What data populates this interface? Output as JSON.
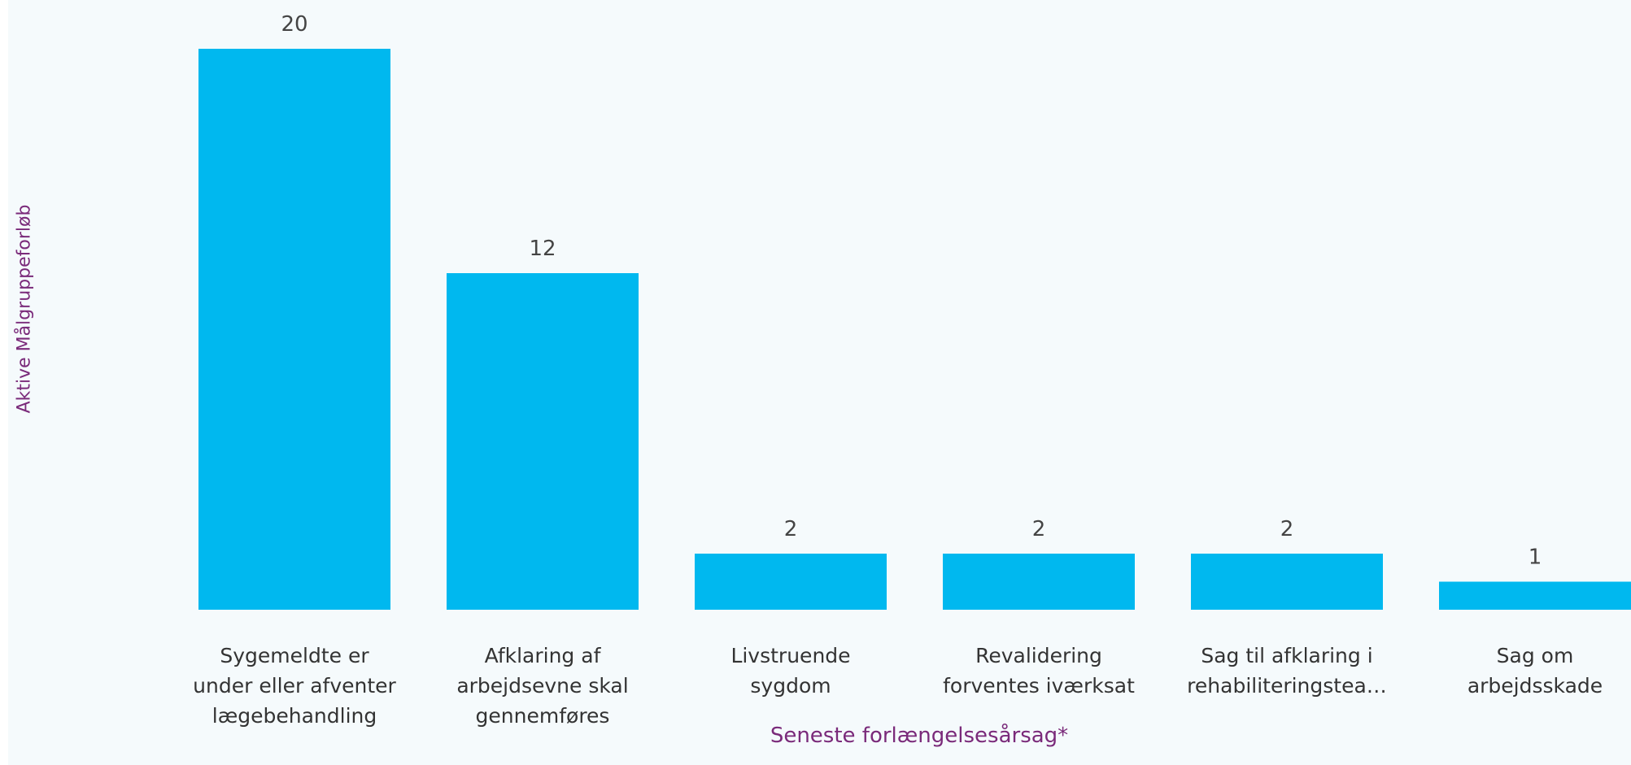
{
  "chart_data": {
    "type": "bar",
    "categories": [
      "Sygemeldte er under eller afventer lægebehandling",
      "Afklaring af arbejdsevne skal gennemføres",
      "Livstruende sygdom",
      "Revalidering forventes iværksat",
      "Sag til afklaring i rehabiliteringstea…",
      "Sag om arbejdsskade"
    ],
    "category_lines": [
      [
        "Sygemeldte er",
        "under eller afventer",
        "lægebehandling"
      ],
      [
        "Afklaring af",
        "arbejdsevne skal",
        "gennemføres"
      ],
      [
        "Livstruende",
        "sygdom"
      ],
      [
        "Revalidering",
        "forventes iværksat"
      ],
      [
        "Sag til afklaring i",
        "rehabiliteringstea…"
      ],
      [
        "Sag om",
        "arbejdsskade"
      ]
    ],
    "values": [
      20,
      12,
      2,
      2,
      2,
      1
    ],
    "title": "",
    "xlabel": "Seneste forlængelsesårsag*",
    "ylabel": "Aktive Målgruppeforløb",
    "ylim": [
      0,
      20
    ],
    "grid": false,
    "bar_color": "#00b8ef",
    "axis_title_color": "#7a2a7a"
  }
}
